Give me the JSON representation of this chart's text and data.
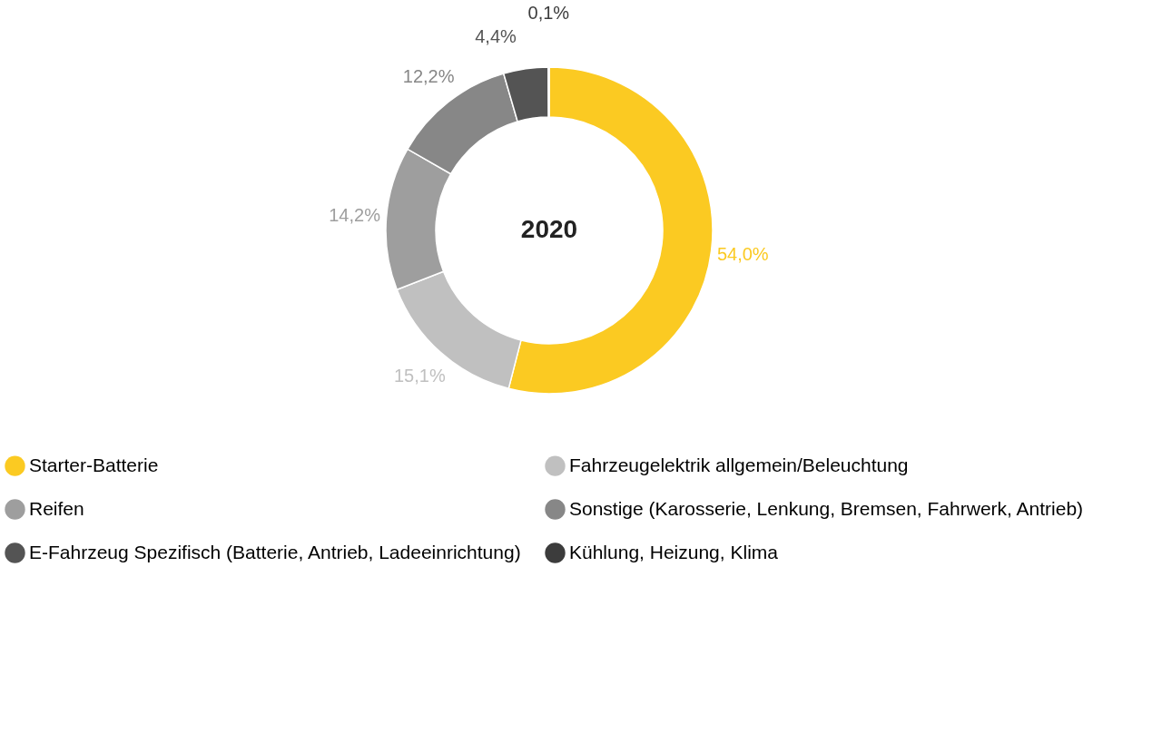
{
  "chart_data": {
    "type": "donut",
    "title": "2020",
    "categories": [
      "Starter-Batterie",
      "Fahrzeugelektrik allgemein/Beleuchtung",
      "Reifen",
      "Sonstige (Karosserie, Lenkung, Bremsen, Fahrwerk, Antrieb)",
      "E-Fahrzeug Spezifisch (Batterie, Antrieb, Ladeeinrichtung)",
      "Kühlung, Heizung, Klima"
    ],
    "values": [
      54.0,
      15.1,
      14.2,
      12.2,
      4.4,
      0.1
    ],
    "colors": [
      "#fbca22",
      "#c0c0c0",
      "#9e9e9e",
      "#878787",
      "#545454",
      "#3c3c3c"
    ],
    "value_labels": [
      "54,0%",
      "15,1%",
      "14,2%",
      "12,2%",
      "4,4%",
      "0,1%"
    ],
    "legend": "bottom"
  }
}
